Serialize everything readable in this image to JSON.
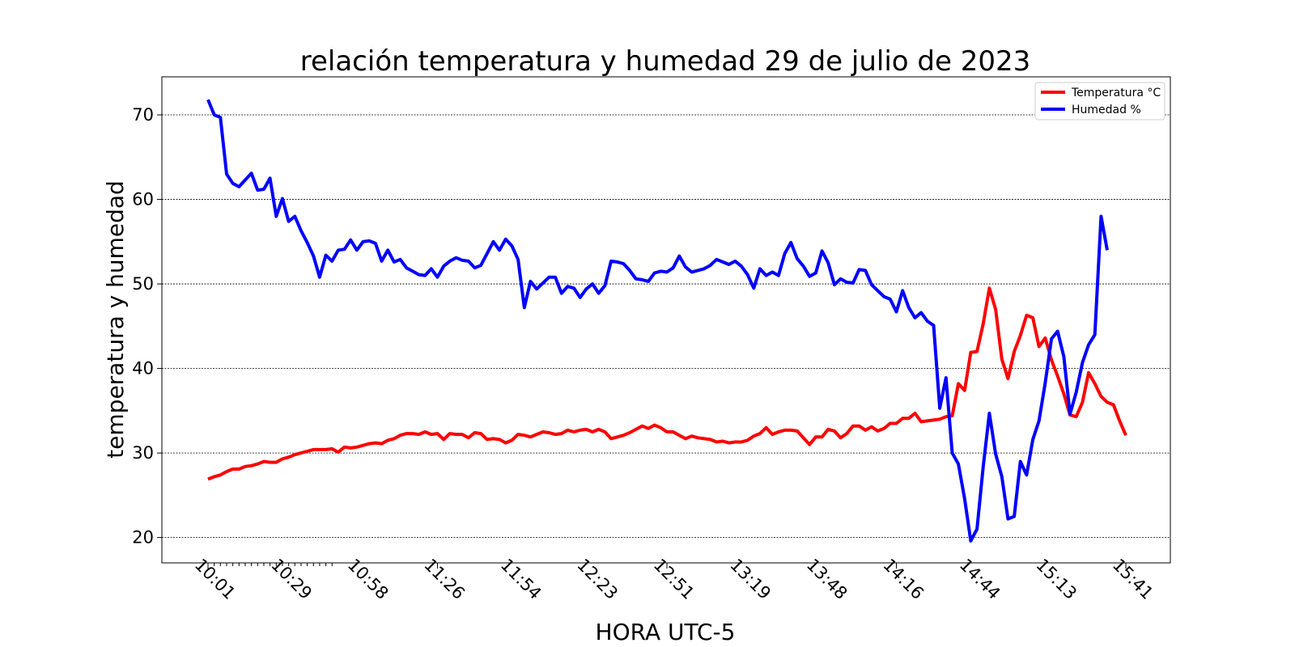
{
  "chart_data": {
    "type": "line",
    "title": "relación temperatura y humedad 29 de julio de 2023",
    "xlabel": "HORA UTC-5",
    "ylabel": "temperatura y humedad",
    "ylim": [
      17,
      74.5
    ],
    "yticks": [
      20,
      30,
      40,
      50,
      60,
      70
    ],
    "xtick_labels": [
      "10:01",
      "10:29",
      "10:58",
      "11:26",
      "11:54",
      "12:23",
      "12:51",
      "13:19",
      "13:48",
      "14:16",
      "14:44",
      "15:13",
      "15:41"
    ],
    "grid": "horizontal dashed",
    "legend_position": "upper right",
    "series": [
      {
        "name": "Temperatura °C",
        "color": "#ff0000",
        "values": [
          26.9,
          27.2,
          27.4,
          27.8,
          28.1,
          28.1,
          28.4,
          28.5,
          28.7,
          29.0,
          28.9,
          28.9,
          29.3,
          29.5,
          29.8,
          30.0,
          30.2,
          30.4,
          30.4,
          30.4,
          30.5,
          30.1,
          30.7,
          30.6,
          30.7,
          30.9,
          31.1,
          31.2,
          31.1,
          31.5,
          31.7,
          32.1,
          32.3,
          32.3,
          32.2,
          32.5,
          32.2,
          32.3,
          31.6,
          32.3,
          32.2,
          32.2,
          31.8,
          32.4,
          32.3,
          31.6,
          31.7,
          31.6,
          31.2,
          31.5,
          32.2,
          32.1,
          31.9,
          32.2,
          32.5,
          32.4,
          32.2,
          32.3,
          32.7,
          32.5,
          32.7,
          32.8,
          32.5,
          32.8,
          32.5,
          31.7,
          31.9,
          32.1,
          32.4,
          32.8,
          33.2,
          32.9,
          33.3,
          33.0,
          32.5,
          32.5,
          32.1,
          31.7,
          32.0,
          31.8,
          31.7,
          31.6,
          31.3,
          31.4,
          31.2,
          31.3,
          31.3,
          31.5,
          32.0,
          32.3,
          33.0,
          32.2,
          32.5,
          32.7,
          32.7,
          32.6,
          31.8,
          31.0,
          31.9,
          31.9,
          32.8,
          32.6,
          31.8,
          32.3,
          33.2,
          33.2,
          32.7,
          33.1,
          32.6,
          32.9,
          33.5,
          33.5,
          34.1,
          34.1,
          34.7,
          33.7,
          33.8,
          33.9,
          34.0,
          34.3,
          34.4,
          38.2,
          37.4,
          41.9,
          42.0,
          45.3,
          49.5,
          47.0,
          41.1,
          38.8,
          42.0,
          43.9,
          46.3,
          46.0,
          42.6,
          43.6,
          41.0,
          39.1,
          37.0,
          34.5,
          34.3,
          36.0,
          39.5,
          38.2,
          36.7,
          36.0,
          35.7,
          33.8,
          32.1
        ]
      },
      {
        "name": "Humedad %",
        "color": "#0000ff",
        "values": [
          71.8,
          70.0,
          69.7,
          63.0,
          61.9,
          61.5,
          62.3,
          63.1,
          61.1,
          61.2,
          62.5,
          58.0,
          60.1,
          57.4,
          58.0,
          56.3,
          54.9,
          53.3,
          50.8,
          53.4,
          52.7,
          54.0,
          54.1,
          55.2,
          54.0,
          55.0,
          55.1,
          54.8,
          52.7,
          54.0,
          52.6,
          52.9,
          51.9,
          51.5,
          51.1,
          51.0,
          51.8,
          50.8,
          52.1,
          52.7,
          53.1,
          52.8,
          52.7,
          51.9,
          52.2,
          53.6,
          55.0,
          54.0,
          55.3,
          54.5,
          52.9,
          47.2,
          50.3,
          49.4,
          50.1,
          50.8,
          50.8,
          48.9,
          49.7,
          49.5,
          48.4,
          49.4,
          50.0,
          48.9,
          49.8,
          52.7,
          52.6,
          52.4,
          51.6,
          50.6,
          50.5,
          50.3,
          51.3,
          51.5,
          51.4,
          51.9,
          53.3,
          52.0,
          51.4,
          51.6,
          51.8,
          52.2,
          52.9,
          52.6,
          52.3,
          52.7,
          52.1,
          51.1,
          49.5,
          51.8,
          51.0,
          51.4,
          51.0,
          53.6,
          54.9,
          53.0,
          52.1,
          50.9,
          51.3,
          53.9,
          52.5,
          49.9,
          50.6,
          50.2,
          50.1,
          51.7,
          51.6,
          49.9,
          49.2,
          48.5,
          48.2,
          46.7,
          49.2,
          47.2,
          46.0,
          46.6,
          45.6,
          45.1,
          35.3,
          38.9,
          30.0,
          28.7,
          24.6,
          19.6,
          21.0,
          28.4,
          34.7,
          29.9,
          27.2,
          22.2,
          22.5,
          29.0,
          27.4,
          31.6,
          33.8,
          38.3,
          43.5,
          44.4,
          41.4,
          34.6,
          37.2,
          40.7,
          42.8,
          44.0,
          58.0,
          54.0
        ]
      }
    ]
  }
}
